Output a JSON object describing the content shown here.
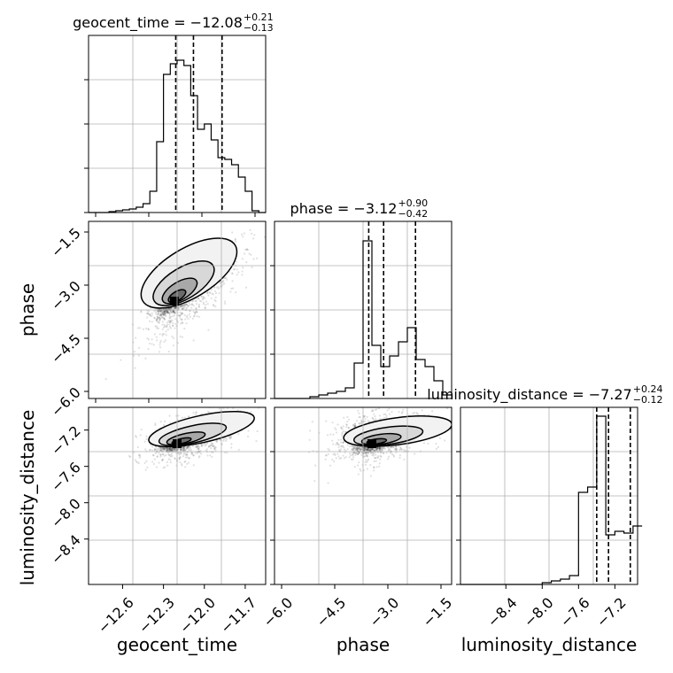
{
  "chart_data": [
    {
      "type": "histogram",
      "panel": "geocent_time-marginal",
      "title": "geocent_time = −12.08",
      "title_sup": "+0.21",
      "title_sub": "−0.13",
      "xlabel": "",
      "ylabel": "",
      "xlim": [
        -12.85,
        -11.55
      ],
      "ylim": [
        0,
        1
      ],
      "quantiles": [
        -12.21,
        -12.08,
        -11.87
      ],
      "bin_width": 0.05,
      "bins_left": [
        -12.85,
        -12.8,
        -12.75,
        -12.7,
        -12.65,
        -12.6,
        -12.55,
        -12.5,
        -12.45,
        -12.4,
        -12.35,
        -12.3,
        -12.25,
        -12.2,
        -12.15,
        -12.1,
        -12.05,
        -12.0,
        -11.95,
        -11.9,
        -11.85,
        -11.8,
        -11.75,
        -11.7,
        -11.65,
        -11.6
      ],
      "values": [
        0,
        0,
        0,
        0.005,
        0.01,
        0.015,
        0.02,
        0.03,
        0.05,
        0.12,
        0.4,
        0.78,
        0.84,
        0.86,
        0.83,
        0.66,
        0.47,
        0.5,
        0.41,
        0.31,
        0.3,
        0.27,
        0.2,
        0.12,
        0.01,
        0
      ]
    },
    {
      "type": "histogram",
      "panel": "phase-marginal",
      "title": "phase = −3.12",
      "title_sup": "+0.90",
      "title_sub": "−0.42",
      "xlabel": "",
      "ylabel": "",
      "xlim": [
        -6.2,
        -1.2
      ],
      "ylim": [
        0,
        1
      ],
      "quantiles": [
        -3.54,
        -3.12,
        -2.22
      ],
      "bin_width": 0.25,
      "bins_left": [
        -6.2,
        -5.95,
        -5.7,
        -5.45,
        -5.2,
        -4.95,
        -4.7,
        -4.45,
        -4.2,
        -3.95,
        -3.7,
        -3.45,
        -3.2,
        -2.95,
        -2.7,
        -2.45,
        -2.2,
        -1.95,
        -1.7,
        -1.45
      ],
      "values": [
        0,
        0,
        0,
        0,
        0.01,
        0.02,
        0.03,
        0.04,
        0.06,
        0.2,
        0.89,
        0.3,
        0.18,
        0.24,
        0.32,
        0.4,
        0.22,
        0.18,
        0.1,
        0.02
      ]
    },
    {
      "type": "histogram",
      "panel": "luminosity_distance-marginal",
      "title": "luminosity_distance = −7.27",
      "title_sup": "+0.24",
      "title_sub": "−0.12",
      "xlabel": "luminosity_distance",
      "ylabel": "",
      "xlim": [
        -8.9,
        -6.95
      ],
      "ylim": [
        0,
        1
      ],
      "quantiles": [
        -7.4,
        -7.27,
        -7.03
      ],
      "xticks": [
        -8.4,
        -8.0,
        -7.6,
        -7.2
      ],
      "xtick_labels": [
        "−8.4",
        "−8.0",
        "−7.6",
        "−7.2"
      ],
      "bin_width": 0.1,
      "bins_left": [
        -8.9,
        -8.8,
        -8.7,
        -8.6,
        -8.5,
        -8.4,
        -8.3,
        -8.2,
        -8.1,
        -8.0,
        -7.9,
        -7.8,
        -7.7,
        -7.6,
        -7.5,
        -7.4,
        -7.3,
        -7.2,
        -7.1,
        -7.0
      ],
      "values": [
        0,
        0,
        0,
        0,
        0,
        0,
        0,
        0,
        0,
        0.01,
        0.02,
        0.03,
        0.05,
        0.52,
        0.55,
        0.95,
        0.28,
        0.3,
        0.29,
        0.33
      ]
    },
    {
      "type": "scatter",
      "panel": "phase-vs-geocent_time",
      "xlabel": "",
      "ylabel": "phase",
      "xlim": [
        -12.85,
        -11.55
      ],
      "ylim": [
        -6.2,
        -1.2
      ],
      "yticks": [
        -1.5,
        -3.0,
        -4.5,
        -6.0
      ],
      "ytick_labels": [
        "−1.5",
        "−3.0",
        "−4.5",
        "−6.0"
      ],
      "mode": [
        -12.22,
        -3.45
      ],
      "correlation": 0.8,
      "x_sigma": 0.18,
      "y_sigma": 0.7,
      "x_mean": -12.08,
      "y_mean": -3.2
    },
    {
      "type": "scatter",
      "panel": "luminosity_distance-vs-geocent_time",
      "xlabel": "geocent_time",
      "ylabel": "luminosity_distance",
      "xlim": [
        -12.85,
        -11.55
      ],
      "ylim": [
        -8.9,
        -6.95
      ],
      "xticks": [
        -12.6,
        -12.3,
        -12.0,
        -11.7
      ],
      "xtick_labels": [
        "−12.6",
        "−12.3",
        "−12.0",
        "−11.7"
      ],
      "yticks": [
        -7.2,
        -7.6,
        -8.0,
        -8.4
      ],
      "ytick_labels": [
        "−7.2",
        "−7.6",
        "−8.0",
        "−8.4"
      ],
      "mode": [
        -12.2,
        -7.35
      ],
      "correlation": 0.5,
      "x_sigma": 0.18,
      "y_sigma": 0.15,
      "x_mean": -12.08,
      "y_mean": -7.27
    },
    {
      "type": "scatter",
      "panel": "luminosity_distance-vs-phase",
      "xlabel": "phase",
      "ylabel": "",
      "xlim": [
        -6.2,
        -1.2
      ],
      "ylim": [
        -8.9,
        -6.95
      ],
      "xticks": [
        -6.0,
        -4.5,
        -3.0,
        -1.5
      ],
      "xtick_labels": [
        "−6.0",
        "−4.5",
        "−3.0",
        "−1.5"
      ],
      "mode": [
        -3.45,
        -7.35
      ],
      "correlation": 0.3,
      "x_sigma": 0.7,
      "y_sigma": 0.15,
      "x_mean": -3.2,
      "y_mean": -7.27
    }
  ]
}
